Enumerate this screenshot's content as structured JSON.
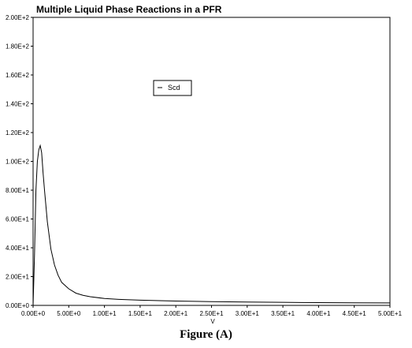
{
  "caption": "Figure (A)",
  "chart_data": {
    "type": "line",
    "title": "Multiple Liquid Phase Reactions in a PFR",
    "xlabel": "V",
    "ylabel": "",
    "xlim": [
      0,
      50
    ],
    "ylim": [
      0,
      200
    ],
    "x_ticks": [
      0,
      5,
      10,
      15,
      20,
      25,
      30,
      35,
      40,
      45,
      50
    ],
    "x_tick_labels": [
      "0.00E+0",
      "5.00E+0",
      "1.00E+1",
      "1.50E+1",
      "2.00E+1",
      "2.50E+1",
      "3.00E+1",
      "3.50E+1",
      "4.00E+1",
      "4.50E+1",
      "5.00E+1"
    ],
    "y_ticks": [
      0,
      20,
      40,
      60,
      80,
      100,
      120,
      140,
      160,
      180,
      200
    ],
    "y_tick_labels": [
      "0.00E+0",
      "2.00E+1",
      "4.00E+1",
      "6.00E+1",
      "8.00E+1",
      "1.00E+2",
      "1.20E+2",
      "1.40E+2",
      "1.60E+2",
      "1.80E+2",
      "2.00E+2"
    ],
    "grid": false,
    "legend_position": "upper-middle",
    "series": [
      {
        "name": "Scd",
        "color": "#000000",
        "x": [
          0,
          0.2,
          0.4,
          0.6,
          0.8,
          1.0,
          1.2,
          1.4,
          1.6,
          2.0,
          2.5,
          3.0,
          3.5,
          4.0,
          5.0,
          6.0,
          7.0,
          8.0,
          10,
          12,
          15,
          20,
          25,
          30,
          35,
          40,
          45,
          50
        ],
        "y": [
          0,
          35,
          80,
          100,
          108,
          111,
          106,
          92,
          80,
          58,
          39,
          28,
          21,
          16,
          11.5,
          8.5,
          7,
          6,
          4.8,
          4.2,
          3.6,
          3.0,
          2.6,
          2.3,
          2.1,
          1.9,
          1.8,
          1.7
        ]
      }
    ]
  }
}
